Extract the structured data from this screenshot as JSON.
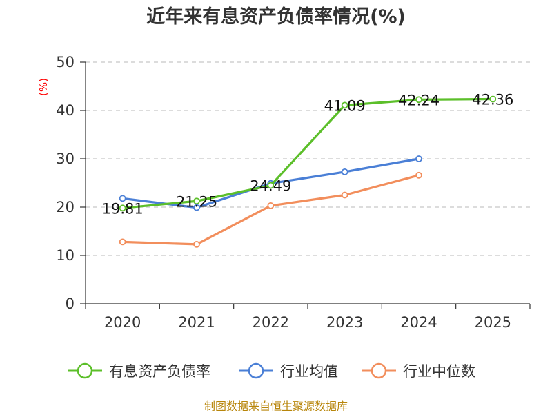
{
  "chart_data": {
    "type": "line",
    "title": "近年来有息资产负债率情况(%)",
    "xlabel": "",
    "ylabel": "(%)",
    "ylim": [
      0,
      50
    ],
    "yticks": [
      0,
      10,
      20,
      30,
      40,
      50
    ],
    "categories": [
      "2020",
      "2021",
      "2022",
      "2023",
      "2024",
      "2025"
    ],
    "grid": true,
    "legend_position": "bottom",
    "series": [
      {
        "name": "有息资产负债率",
        "color": "#5cbf2a",
        "values": [
          19.81,
          21.25,
          24.49,
          41.09,
          42.24,
          42.36
        ],
        "labels": [
          "19.81",
          "21.25",
          "24.49",
          "41.09",
          "42.24",
          "42.36"
        ]
      },
      {
        "name": "行业均值",
        "color": "#4a7fd6",
        "values": [
          21.8,
          19.9,
          24.9,
          27.3,
          30.0,
          null
        ]
      },
      {
        "name": "行业中位数",
        "color": "#f28e5c",
        "values": [
          12.8,
          12.3,
          20.3,
          22.5,
          26.6,
          null
        ]
      }
    ],
    "source": "制图数据来自恒生聚源数据库"
  }
}
